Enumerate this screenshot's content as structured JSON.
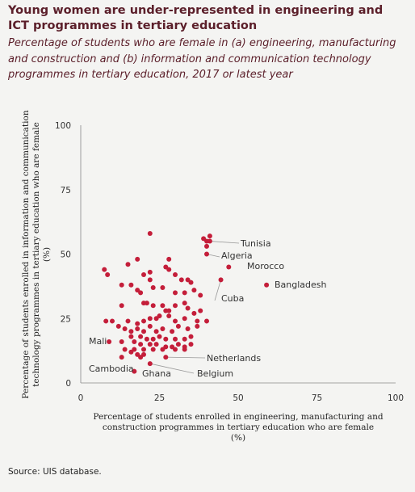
{
  "header": {
    "title": "Young women are under-represented in engineering and ICT programmes in tertiary education",
    "subtitle": "Percentage of students who are female in (a) engineering, manufacturing and construction and (b) information and communication technology programmes in tertiary education, 2017 or latest year"
  },
  "footer": {
    "source": "Source: UIS database."
  },
  "colors": {
    "point": "#c41e3a",
    "axis": "#888888",
    "leader": "#999999"
  },
  "chart_data": {
    "type": "scatter",
    "xlabel_lines": [
      "Percentage of students enrolled in engineering, manufacturing and",
      "construction programmes in tertiary education who are female",
      "(%)"
    ],
    "ylabel_lines": [
      "Percentage of students enrolled in information and communication",
      "technology programmes in tertiary education who are female",
      "(%)"
    ],
    "xlim": [
      0,
      100
    ],
    "ylim": [
      0,
      100
    ],
    "xticks": [
      0,
      25,
      50,
      75,
      100
    ],
    "yticks": [
      0,
      25,
      50,
      75,
      100
    ],
    "grid": false,
    "points": [
      [
        22,
        58
      ],
      [
        39,
        56
      ],
      [
        41,
        57
      ],
      [
        40,
        55
      ],
      [
        40,
        53
      ],
      [
        7.5,
        44
      ],
      [
        8.5,
        42
      ],
      [
        15,
        46
      ],
      [
        18,
        48
      ],
      [
        20,
        42
      ],
      [
        22,
        43
      ],
      [
        27,
        45
      ],
      [
        28,
        44
      ],
      [
        28,
        48
      ],
      [
        30,
        42
      ],
      [
        22,
        40
      ],
      [
        32,
        40
      ],
      [
        34,
        40
      ],
      [
        35,
        39
      ],
      [
        13,
        38
      ],
      [
        16,
        38
      ],
      [
        18,
        36
      ],
      [
        19,
        35
      ],
      [
        23,
        37
      ],
      [
        26,
        37
      ],
      [
        30,
        35
      ],
      [
        33,
        35
      ],
      [
        36,
        36
      ],
      [
        38,
        34
      ],
      [
        13,
        30
      ],
      [
        20,
        31
      ],
      [
        21,
        31
      ],
      [
        23,
        30
      ],
      [
        26,
        30
      ],
      [
        27,
        28
      ],
      [
        28,
        28
      ],
      [
        30,
        30
      ],
      [
        33,
        31
      ],
      [
        34,
        29
      ],
      [
        36,
        27
      ],
      [
        38,
        28
      ],
      [
        8,
        24
      ],
      [
        10,
        24
      ],
      [
        15,
        24
      ],
      [
        18,
        23
      ],
      [
        20,
        24
      ],
      [
        22,
        25
      ],
      [
        24,
        25
      ],
      [
        25,
        26
      ],
      [
        28,
        26
      ],
      [
        30,
        24
      ],
      [
        33,
        25
      ],
      [
        37,
        24
      ],
      [
        40,
        24
      ],
      [
        12,
        22
      ],
      [
        14,
        21
      ],
      [
        16,
        20
      ],
      [
        18,
        21
      ],
      [
        20,
        20
      ],
      [
        22,
        22
      ],
      [
        24,
        20
      ],
      [
        26,
        21
      ],
      [
        29,
        20
      ],
      [
        31,
        22
      ],
      [
        34,
        21
      ],
      [
        37,
        22
      ],
      [
        16,
        18
      ],
      [
        19,
        18
      ],
      [
        21,
        17
      ],
      [
        23,
        17
      ],
      [
        25,
        18
      ],
      [
        27,
        17
      ],
      [
        30,
        17
      ],
      [
        33,
        17
      ],
      [
        35,
        18
      ],
      [
        13,
        16
      ],
      [
        17,
        16
      ],
      [
        19,
        15
      ],
      [
        22,
        15
      ],
      [
        24,
        15
      ],
      [
        27,
        14
      ],
      [
        29,
        14
      ],
      [
        31,
        15
      ],
      [
        33,
        14
      ],
      [
        35,
        15
      ],
      [
        17,
        13
      ],
      [
        20,
        13
      ],
      [
        23,
        13
      ],
      [
        26,
        13
      ],
      [
        30,
        13
      ],
      [
        33,
        13
      ],
      [
        18,
        11
      ],
      [
        20,
        11
      ],
      [
        19,
        10
      ],
      [
        16,
        12
      ],
      [
        14,
        13
      ]
    ],
    "annotations": [
      {
        "label": "Tunisia",
        "x": 41,
        "y": 55
      },
      {
        "label": "Algeria",
        "x": 40,
        "y": 50
      },
      {
        "label": "Morocco",
        "x": 47,
        "y": 45
      },
      {
        "label": "Bangladesh",
        "x": 59,
        "y": 38
      },
      {
        "label": "Cuba",
        "x": 44.5,
        "y": 40
      },
      {
        "label": "Mali",
        "x": 9,
        "y": 16
      },
      {
        "label": "Netherlands",
        "x": 27,
        "y": 10
      },
      {
        "label": "Cambodia",
        "x": 13,
        "y": 10
      },
      {
        "label": "Ghana",
        "x": 17,
        "y": 4.5
      },
      {
        "label": "Belgium",
        "x": 22,
        "y": 7.5
      }
    ]
  }
}
